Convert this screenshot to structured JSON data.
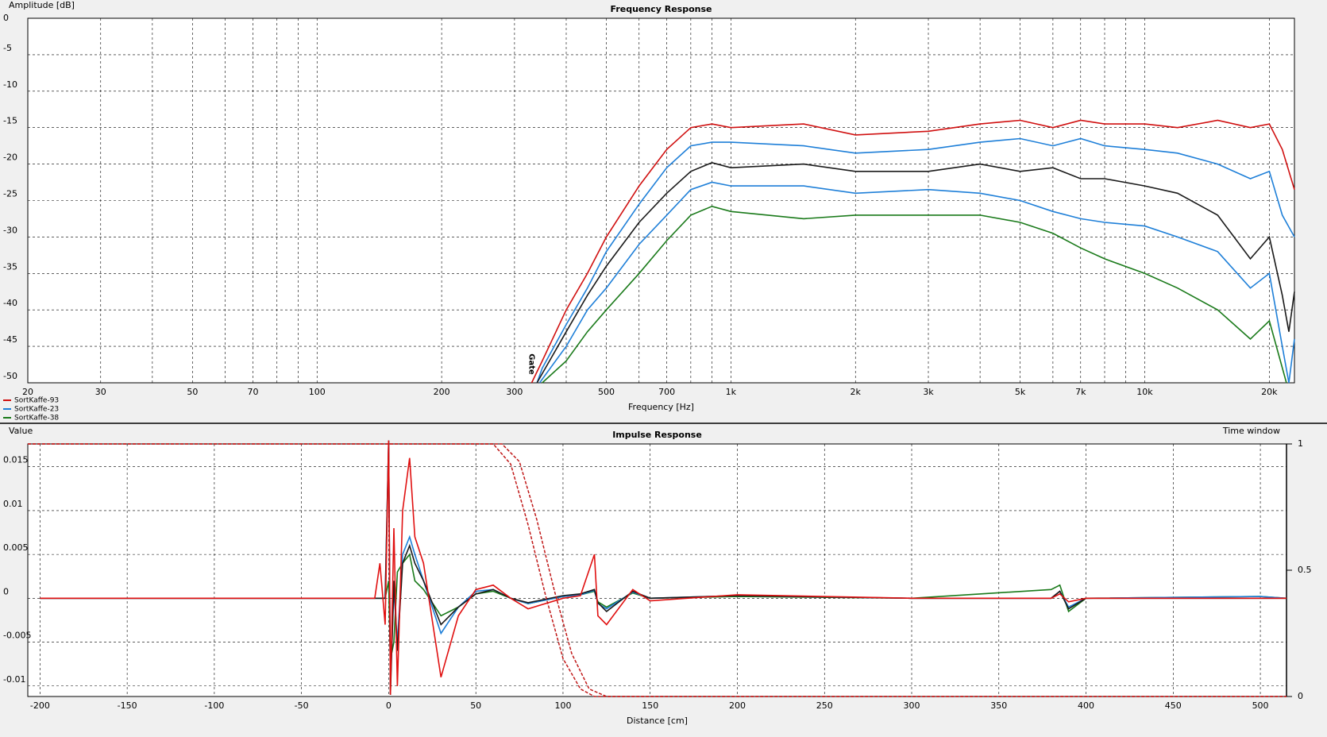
{
  "chart_data": [
    {
      "type": "line",
      "title": "Frequency Response",
      "ylabel": "Amplitude [dB]",
      "xlabel": "Frequency [Hz]",
      "xscale": "log",
      "grid": true,
      "xlim": [
        20,
        23000
      ],
      "ylim": [
        -50,
        0
      ],
      "yticks": [
        0,
        -5,
        -10,
        -15,
        -20,
        -25,
        -30,
        -35,
        -40,
        -45,
        -50
      ],
      "xticks": [
        20,
        30,
        50,
        70,
        100,
        200,
        300,
        500,
        700,
        {
          "value": 1000,
          "label": "1k"
        },
        {
          "value": 2000,
          "label": "2k"
        },
        {
          "value": 3000,
          "label": "3k"
        },
        {
          "value": 5000,
          "label": "5k"
        },
        {
          "value": 7000,
          "label": "7k"
        },
        {
          "value": 10000,
          "label": "10k"
        },
        {
          "value": 20000,
          "label": "20k"
        }
      ],
      "xgrid": [
        40,
        60,
        80,
        90,
        400,
        600,
        800,
        900,
        4000,
        6000,
        8000,
        9000
      ],
      "annotations": [
        {
          "text": "Gate",
          "x": 330,
          "y": -46,
          "color": "#d01010"
        }
      ],
      "legend": "bottom-left",
      "series": [
        {
          "name": "SortKaffe-93",
          "color": "#d01010",
          "x": [
            330,
            350,
            400,
            450,
            500,
            600,
            700,
            800,
            900,
            1000,
            1500,
            2000,
            3000,
            4000,
            5000,
            6000,
            7000,
            8000,
            10000,
            12000,
            15000,
            18000,
            20000,
            21500,
            23000
          ],
          "values": [
            -50,
            -47,
            -40,
            -35,
            -30,
            -23,
            -18,
            -15,
            -14.5,
            -15,
            -14.5,
            -16,
            -15.5,
            -14.5,
            -14,
            -15,
            -14,
            -14.5,
            -14.5,
            -15,
            -14,
            -15,
            -14.5,
            -18,
            -23.5
          ]
        },
        {
          "name": "SortKaffe-23",
          "color": "#1e7fd8",
          "x": [
            340,
            350,
            400,
            450,
            500,
            600,
            700,
            800,
            900,
            1000,
            1500,
            2000,
            3000,
            4000,
            5000,
            6000,
            7000,
            8000,
            10000,
            12000,
            15000,
            18000,
            20000,
            21500,
            23000
          ],
          "values": [
            -50,
            -48,
            -42,
            -37,
            -32,
            -25.5,
            -20.5,
            -17.5,
            -17,
            -17,
            -17.5,
            -18.5,
            -18,
            -17,
            -16.5,
            -17.5,
            -16.5,
            -17.5,
            -18,
            -18.5,
            -20,
            -22,
            -21,
            -27,
            -30
          ]
        },
        {
          "color": "#1a1a1a",
          "x": [
            340,
            400,
            450,
            500,
            600,
            700,
            800,
            900,
            1000,
            1500,
            2000,
            3000,
            4000,
            5000,
            6000,
            7000,
            8000,
            10000,
            12000,
            15000,
            18000,
            20000,
            21500,
            22300,
            23000
          ],
          "values": [
            -50,
            -43,
            -38,
            -34,
            -28,
            -24,
            -21,
            -19.8,
            -20.5,
            -20,
            -21,
            -21,
            -20,
            -21,
            -20.5,
            -22,
            -22,
            -23,
            -24,
            -27,
            -33,
            -30,
            -38,
            -43,
            -37.5
          ]
        },
        {
          "color": "#1e7fd8",
          "x": [
            345,
            400,
            450,
            500,
            600,
            700,
            800,
            900,
            1000,
            1500,
            2000,
            3000,
            4000,
            5000,
            6000,
            7000,
            8000,
            10000,
            12000,
            15000,
            18000,
            20000,
            21500,
            22300,
            23000
          ],
          "values": [
            -50,
            -45,
            -40,
            -37,
            -31,
            -27,
            -23.5,
            -22.5,
            -23,
            -23,
            -24,
            -23.5,
            -24,
            -25,
            -26.5,
            -27.5,
            -28,
            -28.5,
            -30,
            -32,
            -37,
            -35,
            -45,
            -50,
            -44
          ]
        },
        {
          "name": "SortKaffe-38",
          "color": "#1a7a1a",
          "x": [
            350,
            400,
            450,
            500,
            600,
            700,
            800,
            900,
            1000,
            1500,
            2000,
            3000,
            4000,
            5000,
            6000,
            7000,
            8000,
            10000,
            12000,
            15000,
            18000,
            20000,
            22000
          ],
          "values": [
            -50,
            -47,
            -43,
            -40,
            -35,
            -30.5,
            -27,
            -25.8,
            -26.5,
            -27.5,
            -27,
            -27,
            -27,
            -28,
            -29.5,
            -31.5,
            -33,
            -35,
            -37,
            -40,
            -44,
            -41.5,
            -50
          ]
        }
      ]
    },
    {
      "type": "line",
      "title": "Impulse Response",
      "ylabel": "Value",
      "xlabel": "Distance [cm]",
      "y2label": "Time window",
      "grid": true,
      "xlim": [
        -207,
        515
      ],
      "ylim": [
        -0.0112,
        0.0176
      ],
      "y2lim": [
        0,
        1
      ],
      "xticks": [
        -200,
        -150,
        -100,
        -50,
        0,
        50,
        100,
        150,
        200,
        250,
        300,
        350,
        400,
        450,
        500
      ],
      "yticks": [
        0.015,
        0.01,
        0.005,
        0,
        -0.005,
        -0.01
      ],
      "y2ticks": [
        0,
        0.5,
        1
      ],
      "x": [
        -200,
        -8,
        -5,
        -2,
        0,
        1,
        3,
        5,
        8,
        12,
        15,
        20,
        30,
        40,
        50,
        60,
        70,
        80,
        100,
        110,
        118,
        120,
        125,
        140,
        150,
        200,
        300,
        380,
        385,
        390,
        400,
        500,
        515
      ],
      "series": [
        {
          "color": "#1a7a1a",
          "values": [
            0,
            0,
            0,
            0,
            0.002,
            -0.007,
            -0.005,
            0.003,
            0.004,
            0.005,
            0.002,
            0.001,
            -0.002,
            -0.001,
            0.0005,
            0.0008,
            0,
            -0.0006,
            0.0002,
            0.0004,
            0.0008,
            -0.0004,
            -0.001,
            0.0006,
            0,
            0.0002,
            0,
            0.001,
            0.0015,
            -0.0015,
            0,
            0.0002,
            0
          ]
        },
        {
          "color": "#1e7fd8",
          "values": [
            0,
            0,
            0,
            0,
            0.018,
            -0.01,
            0.001,
            -0.005,
            0.005,
            0.007,
            0.005,
            0.002,
            -0.004,
            -0.001,
            0.0008,
            0.001,
            0,
            -0.0006,
            0.0002,
            0.0004,
            0.0009,
            -0.0006,
            -0.0012,
            0.0007,
            0,
            0.0003,
            0,
            0,
            0.0008,
            -0.001,
            0,
            0.0002,
            0
          ]
        },
        {
          "color": "#1a1a1a",
          "values": [
            0,
            0,
            0,
            0,
            0.018,
            -0.011,
            0.002,
            -0.006,
            0.004,
            0.006,
            0.004,
            0.002,
            -0.003,
            -0.001,
            0.0005,
            0.001,
            0,
            -0.0005,
            0.0003,
            0.0005,
            0.001,
            -0.0005,
            -0.0015,
            0.0008,
            0,
            0.0003,
            0,
            0,
            0.0008,
            -0.0012,
            0,
            0,
            0
          ]
        },
        {
          "color": "#e01010",
          "values": [
            0,
            0,
            0.004,
            -0.003,
            0.018,
            -0.011,
            0.008,
            -0.01,
            0.01,
            0.016,
            0.007,
            0.004,
            -0.009,
            -0.002,
            0.001,
            0.0015,
            0,
            -0.0012,
            0,
            0.0003,
            0.005,
            -0.002,
            -0.003,
            0.001,
            -0.0003,
            0.0004,
            0,
            0,
            0.0005,
            -0.0004,
            0,
            0,
            0
          ]
        },
        {
          "color": "#c01818",
          "axis": "y2",
          "dash": true,
          "x": [
            -207,
            65,
            75,
            85,
            95,
            105,
            115,
            125,
            515
          ],
          "values": [
            1,
            1,
            0.93,
            0.7,
            0.42,
            0.17,
            0.03,
            0,
            0
          ]
        },
        {
          "color": "#c01818",
          "axis": "y2",
          "dash": true,
          "x": [
            -207,
            60,
            70,
            80,
            90,
            100,
            110,
            118,
            515
          ],
          "values": [
            1,
            1,
            0.92,
            0.68,
            0.4,
            0.15,
            0.03,
            0,
            0
          ]
        }
      ]
    }
  ]
}
